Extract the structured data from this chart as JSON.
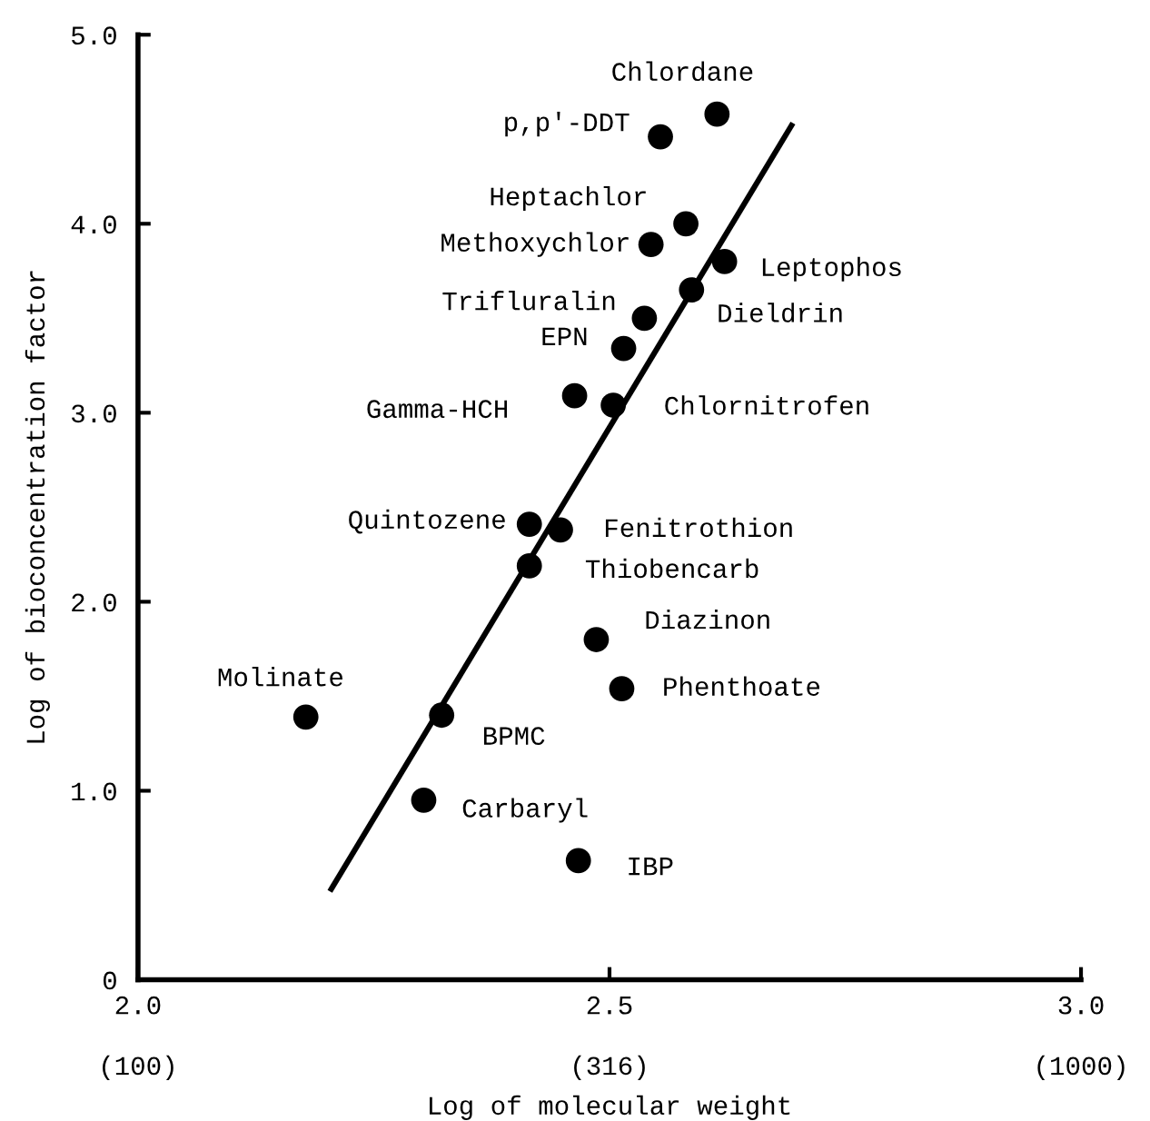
{
  "chart_data": {
    "type": "scatter",
    "xlabel": "Log of molecular weight",
    "ylabel": "Log of bioconcentration factor",
    "xlim": [
      2.0,
      3.0
    ],
    "ylim": [
      0,
      5.0
    ],
    "xticks": [
      {
        "value": 2.0,
        "label": "2.0"
      },
      {
        "value": 2.5,
        "label": "2.5"
      },
      {
        "value": 3.0,
        "label": "3.0"
      }
    ],
    "yticks": [
      0,
      {
        "value": 1,
        "label": "1.0"
      },
      {
        "value": 2,
        "label": "2.0"
      },
      {
        "value": 3,
        "label": "3.0"
      },
      {
        "value": 4,
        "label": "4.0"
      },
      {
        "value": 5,
        "label": "5.0"
      }
    ],
    "grid": false,
    "legend": false,
    "marker": "circle",
    "series": [
      {
        "color": "#000000",
        "x": [
          2.614,
          2.554,
          2.581,
          2.544,
          2.622,
          2.587,
          2.537,
          2.515,
          2.463,
          2.504,
          2.415,
          2.448,
          2.415,
          2.486,
          2.513,
          2.178,
          2.322,
          2.303,
          2.467
        ],
        "values": [
          4.58,
          4.46,
          4.0,
          3.89,
          3.8,
          3.65,
          3.5,
          3.34,
          3.09,
          3.04,
          2.41,
          2.38,
          2.19,
          1.8,
          1.54,
          1.39,
          1.4,
          0.95,
          0.63
        ]
      },
      {
        "type": "line",
        "color": "#000000",
        "marker": "none",
        "line_style": "solid",
        "x": [
          2.205,
          2.693
        ],
        "values": [
          0.48,
          4.52
        ]
      }
    ],
    "annotations": [
      {
        "text": "Chlordane",
        "x": 2.614,
        "y": 4.58
      },
      {
        "text": "p,p'-DDT",
        "x": 2.554,
        "y": 4.46
      },
      {
        "text": "Heptachlor",
        "x": 2.581,
        "y": 4.0
      },
      {
        "text": "Methoxychlor",
        "x": 2.544,
        "y": 3.89
      },
      {
        "text": "Leptophos",
        "x": 2.622,
        "y": 3.8
      },
      {
        "text": "Dieldrin",
        "x": 2.587,
        "y": 3.65
      },
      {
        "text": "Trifluralin",
        "x": 2.537,
        "y": 3.5
      },
      {
        "text": "EPN",
        "x": 2.515,
        "y": 3.34
      },
      {
        "text": "Gamma-HCH",
        "x": 2.463,
        "y": 3.09
      },
      {
        "text": "Chlornitrofen",
        "x": 2.504,
        "y": 3.04
      },
      {
        "text": "Quintozene",
        "x": 2.415,
        "y": 2.41
      },
      {
        "text": "Fenitrothion",
        "x": 2.448,
        "y": 2.38
      },
      {
        "text": "Thiobencarb",
        "x": 2.415,
        "y": 2.19
      },
      {
        "text": "Diazinon",
        "x": 2.486,
        "y": 1.8
      },
      {
        "text": "Phenthoate",
        "x": 2.513,
        "y": 1.54
      },
      {
        "text": "Molinate",
        "x": 2.178,
        "y": 1.39
      },
      {
        "text": "BPMC",
        "x": 2.322,
        "y": 1.4
      },
      {
        "text": "Carbaryl",
        "x": 2.303,
        "y": 0.95
      },
      {
        "text": "IBP",
        "x": 2.467,
        "y": 0.63
      },
      "(100)",
      "(316)",
      "(1000)"
    ]
  }
}
